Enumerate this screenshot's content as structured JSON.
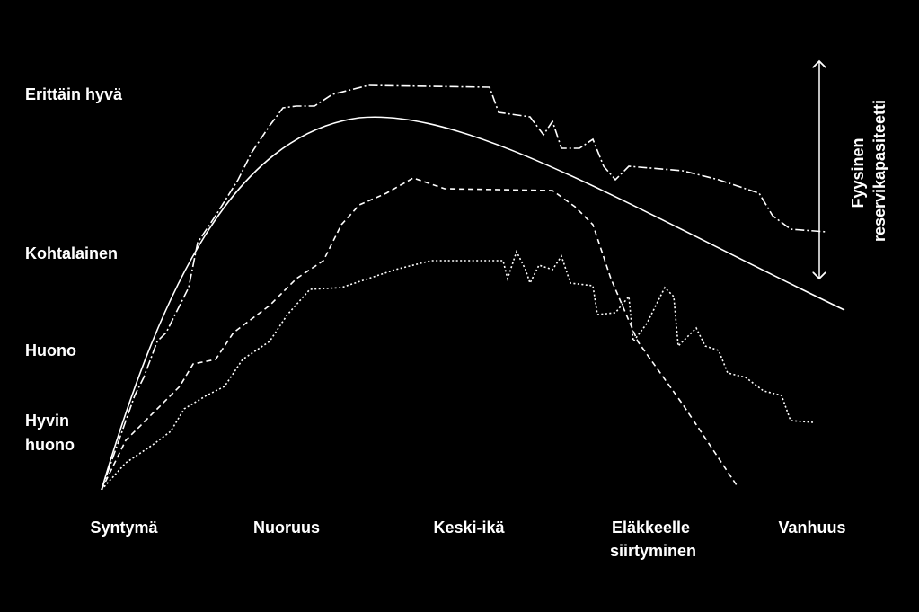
{
  "levels": [
    "Erittäin hyvä",
    "Kohtalainen",
    "Huono",
    {
      "lines": [
        "Hyvin",
        "huono"
      ]
    }
  ],
  "stages": [
    "Syntymä",
    "Nuoruus",
    "Keski-ikä",
    {
      "lines": [
        "Eläkkeelle",
        "siirtyminen"
      ]
    },
    "Vanhuus"
  ],
  "axis_label": {
    "lines": [
      "Fyysinen",
      "reservikapasiteetti"
    ]
  }
}
